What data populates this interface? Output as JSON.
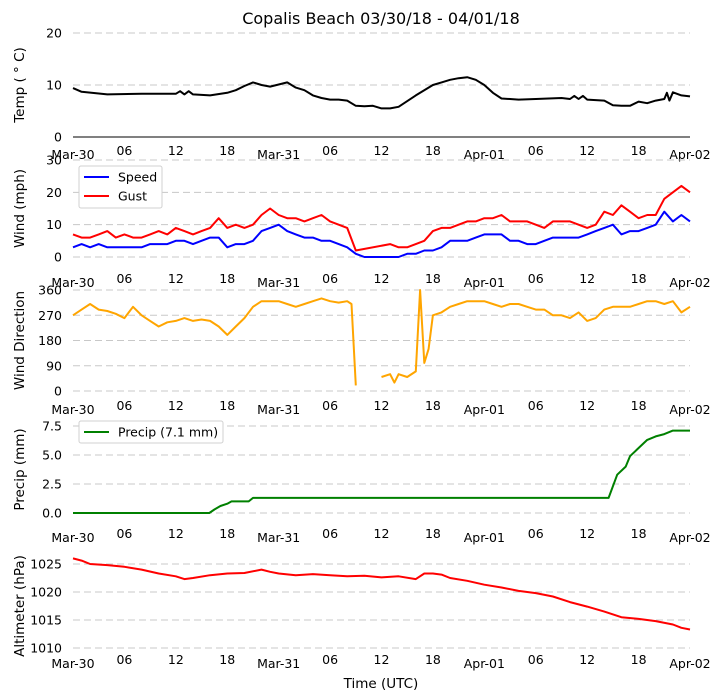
{
  "chart_data": [
    {
      "type": "line",
      "title": "Copalis Beach 03/30/18 - 04/01/18",
      "ylabel": "Temp ($^\\circ$C)",
      "ylabel_display": "Temp ( ° C)",
      "ylim": [
        0,
        20
      ],
      "yticks": [
        "0",
        "10",
        "20"
      ],
      "grid": true,
      "x_tick_labels": [
        "Mar-30",
        "06",
        "12",
        "18",
        "Mar-31",
        "06",
        "12",
        "18",
        "Apr-01",
        "06",
        "12",
        "18",
        "Apr-02"
      ],
      "series": [
        {
          "name": "Temp",
          "color": "#000000",
          "x_hours": [
            0,
            1,
            4,
            8,
            12,
            12.5,
            13,
            13.5,
            14,
            16,
            18,
            19,
            20,
            21,
            22,
            23,
            24,
            25,
            26,
            27,
            28,
            29,
            30,
            31,
            32,
            33,
            34,
            35,
            36,
            37,
            38,
            40,
            42,
            43,
            44,
            45,
            46,
            47,
            48,
            49,
            50,
            51,
            52,
            54,
            57,
            58,
            58.5,
            59,
            59.5,
            60,
            62,
            63,
            64,
            65,
            66,
            67,
            68,
            69,
            69.3,
            69.6,
            70,
            71,
            72
          ],
          "values": [
            9.4,
            8.7,
            8.2,
            8.3,
            8.3,
            8.8,
            8.2,
            8.8,
            8.2,
            8.0,
            8.5,
            9.0,
            9.8,
            10.5,
            10.0,
            9.7,
            10.1,
            10.5,
            9.5,
            9.0,
            8.0,
            7.5,
            7.2,
            7.2,
            7.0,
            6.0,
            5.9,
            6.0,
            5.5,
            5.5,
            5.8,
            8.0,
            10.0,
            10.5,
            11.0,
            11.3,
            11.5,
            11.0,
            10.0,
            8.5,
            7.4,
            7.3,
            7.2,
            7.3,
            7.5,
            7.3,
            7.9,
            7.3,
            7.9,
            7.2,
            7.0,
            6.1,
            6.0,
            6.0,
            6.8,
            6.5,
            7.0,
            7.3,
            8.5,
            7.0,
            8.6,
            8.0,
            7.8
          ]
        }
      ]
    },
    {
      "type": "line",
      "ylabel": "Wind (mph)",
      "ylim": [
        0,
        30
      ],
      "yticks": [
        "0",
        "10",
        "20",
        "30"
      ],
      "grid": true,
      "legend": "top-left",
      "x_tick_labels": [
        "Mar-30",
        "06",
        "12",
        "18",
        "Mar-31",
        "06",
        "12",
        "18",
        "Apr-01",
        "06",
        "12",
        "18",
        "Apr-02"
      ],
      "series": [
        {
          "name": "Speed",
          "color": "#0000ff",
          "x_hours": [
            0,
            1,
            2,
            3,
            4,
            5,
            6,
            7,
            8,
            9,
            10,
            11,
            12,
            13,
            14,
            15,
            16,
            17,
            18,
            19,
            20,
            21,
            22,
            23,
            24,
            25,
            26,
            27,
            28,
            29,
            30,
            31,
            32,
            33,
            34,
            35,
            36,
            37,
            38,
            39,
            40,
            41,
            42,
            43,
            44,
            45,
            46,
            47,
            48,
            49,
            50,
            51,
            52,
            53,
            54,
            55,
            56,
            57,
            58,
            59,
            60,
            61,
            62,
            63,
            64,
            65,
            66,
            67,
            68,
            69,
            70,
            71,
            72
          ],
          "values": [
            3,
            4,
            3,
            4,
            3,
            3,
            3,
            3,
            3,
            4,
            4,
            4,
            5,
            5,
            4,
            5,
            6,
            6,
            3,
            4,
            4,
            5,
            8,
            9,
            10,
            8,
            7,
            6,
            6,
            5,
            5,
            4,
            3,
            1,
            0,
            0,
            0,
            0,
            0,
            1,
            1,
            2,
            2,
            3,
            5,
            5,
            5,
            6,
            7,
            7,
            7,
            5,
            5,
            4,
            4,
            5,
            6,
            6,
            6,
            6,
            7,
            8,
            9,
            10,
            7,
            8,
            8,
            9,
            10,
            14,
            11,
            13,
            11
          ]
        },
        {
          "name": "Gust",
          "color": "#ff0000",
          "x_hours": [
            0,
            1,
            2,
            3,
            4,
            5,
            6,
            7,
            8,
            9,
            10,
            11,
            12,
            13,
            14,
            15,
            16,
            17,
            18,
            19,
            20,
            21,
            22,
            23,
            24,
            25,
            26,
            27,
            28,
            29,
            30,
            31,
            32,
            33,
            37,
            38,
            39,
            40,
            41,
            42,
            43,
            44,
            45,
            46,
            47,
            48,
            49,
            50,
            51,
            52,
            53,
            54,
            55,
            56,
            57,
            58,
            59,
            60,
            61,
            62,
            63,
            64,
            65,
            66,
            67,
            68,
            69,
            70,
            71,
            72
          ],
          "values": [
            7,
            6,
            6,
            7,
            8,
            6,
            7,
            6,
            6,
            7,
            8,
            7,
            9,
            8,
            7,
            8,
            9,
            12,
            9,
            10,
            9,
            10,
            13,
            15,
            13,
            12,
            12,
            11,
            12,
            13,
            11,
            10,
            9,
            2,
            4,
            3,
            3,
            4,
            5,
            8,
            9,
            9,
            10,
            11,
            11,
            12,
            12,
            13,
            11,
            11,
            11,
            10,
            9,
            11,
            11,
            11,
            10,
            9,
            10,
            14,
            13,
            16,
            14,
            12,
            13,
            13,
            18,
            20,
            22,
            20
          ]
        }
      ]
    },
    {
      "type": "line",
      "ylabel": "Wind Direction",
      "ylim": [
        0,
        360
      ],
      "yticks": [
        "0",
        "90",
        "180",
        "270",
        "360"
      ],
      "grid": true,
      "x_tick_labels": [
        "Mar-30",
        "06",
        "12",
        "18",
        "Mar-31",
        "06",
        "12",
        "18",
        "Apr-01",
        "06",
        "12",
        "18",
        "Apr-02"
      ],
      "series": [
        {
          "name": "Wind Direction",
          "color": "#ffa500",
          "segments": [
            {
              "x_hours": [
                0,
                1,
                2,
                3,
                4,
                5,
                6,
                7,
                8,
                9,
                10,
                11,
                12,
                13,
                14,
                15,
                16,
                17,
                18,
                19,
                20,
                21,
                22,
                23,
                24,
                25,
                26,
                27,
                28,
                29,
                30,
                31,
                32,
                32.5,
                33
              ],
              "values": [
                270,
                290,
                310,
                290,
                285,
                275,
                260,
                300,
                270,
                250,
                230,
                245,
                250,
                260,
                250,
                255,
                250,
                230,
                200,
                230,
                260,
                300,
                320,
                320,
                320,
                310,
                300,
                310,
                320,
                330,
                320,
                315,
                320,
                310,
                20
              ]
            },
            {
              "x_hours": [
                36,
                37,
                37.5,
                38,
                39,
                40,
                40.5,
                41,
                41.5,
                42,
                43,
                44,
                45,
                46,
                47,
                48,
                49,
                50,
                51,
                52,
                53,
                54,
                55,
                56,
                57,
                58,
                59,
                60,
                61,
                62,
                63,
                64,
                65,
                66,
                67,
                68,
                69,
                70,
                71,
                72
              ],
              "values": [
                50,
                60,
                30,
                60,
                50,
                70,
                360,
                100,
                150,
                270,
                280,
                300,
                310,
                320,
                320,
                320,
                310,
                300,
                310,
                310,
                300,
                290,
                290,
                270,
                270,
                260,
                280,
                250,
                260,
                290,
                300,
                300,
                300,
                310,
                320,
                320,
                310,
                320,
                280,
                300
              ]
            }
          ]
        }
      ]
    },
    {
      "type": "line",
      "ylabel": "Precip (mm)",
      "ylim": [
        0,
        7.5
      ],
      "yticks": [
        "0.0",
        "2.5",
        "5.0",
        "7.5"
      ],
      "grid": true,
      "legend": "top-left",
      "x_tick_labels": [
        "Mar-30",
        "06",
        "12",
        "18",
        "Mar-31",
        "06",
        "12",
        "18",
        "Apr-01",
        "06",
        "12",
        "18",
        "Apr-02"
      ],
      "series": [
        {
          "name": "Precip (7.1 mm)",
          "color": "#008000",
          "x_hours": [
            0,
            15.9,
            16.5,
            17.2,
            18,
            18.5,
            20.5,
            21,
            62,
            62.5,
            63.5,
            64.5,
            65,
            66,
            67,
            68,
            69,
            70,
            72
          ],
          "values": [
            0,
            0,
            0.3,
            0.6,
            0.8,
            1.0,
            1.0,
            1.3,
            1.3,
            1.3,
            3.3,
            4.0,
            4.9,
            5.6,
            6.3,
            6.6,
            6.8,
            7.1,
            7.1
          ]
        }
      ]
    },
    {
      "type": "line",
      "ylabel": "Altimeter (hPa)",
      "xlabel": "Time (UTC)",
      "ylim": [
        1010,
        1027
      ],
      "yticks": [
        "1010",
        "1015",
        "1020",
        "1025"
      ],
      "grid": true,
      "x_tick_labels": [
        "Mar-30",
        "06",
        "12",
        "18",
        "Mar-31",
        "06",
        "12",
        "18",
        "Apr-01",
        "06",
        "12",
        "18",
        "Apr-02"
      ],
      "series": [
        {
          "name": "Altimeter",
          "color": "#ff0000",
          "x_hours": [
            0,
            1,
            2,
            4,
            6,
            8,
            10,
            12,
            13,
            14,
            16,
            18,
            20,
            22,
            23,
            24,
            26,
            28,
            30,
            32,
            34,
            36,
            38,
            40,
            41,
            42,
            43,
            44,
            46,
            48,
            50,
            52,
            54,
            56,
            58,
            60,
            62,
            64,
            66,
            68,
            70,
            71,
            72
          ],
          "values": [
            1026.0,
            1025.6,
            1025.0,
            1024.8,
            1024.5,
            1024.0,
            1023.3,
            1022.8,
            1022.3,
            1022.5,
            1023.0,
            1023.3,
            1023.4,
            1024.0,
            1023.6,
            1023.3,
            1023.0,
            1023.2,
            1023.0,
            1022.8,
            1022.9,
            1022.6,
            1022.8,
            1022.3,
            1023.3,
            1023.3,
            1023.1,
            1022.5,
            1022.0,
            1021.3,
            1020.8,
            1020.2,
            1019.8,
            1019.2,
            1018.2,
            1017.4,
            1016.5,
            1015.5,
            1015.2,
            1014.8,
            1014.2,
            1013.6,
            1013.3
          ]
        }
      ]
    }
  ],
  "legends": {
    "wind": [
      "Speed",
      "Gust"
    ],
    "precip": [
      "Precip (7.1 mm)"
    ]
  }
}
